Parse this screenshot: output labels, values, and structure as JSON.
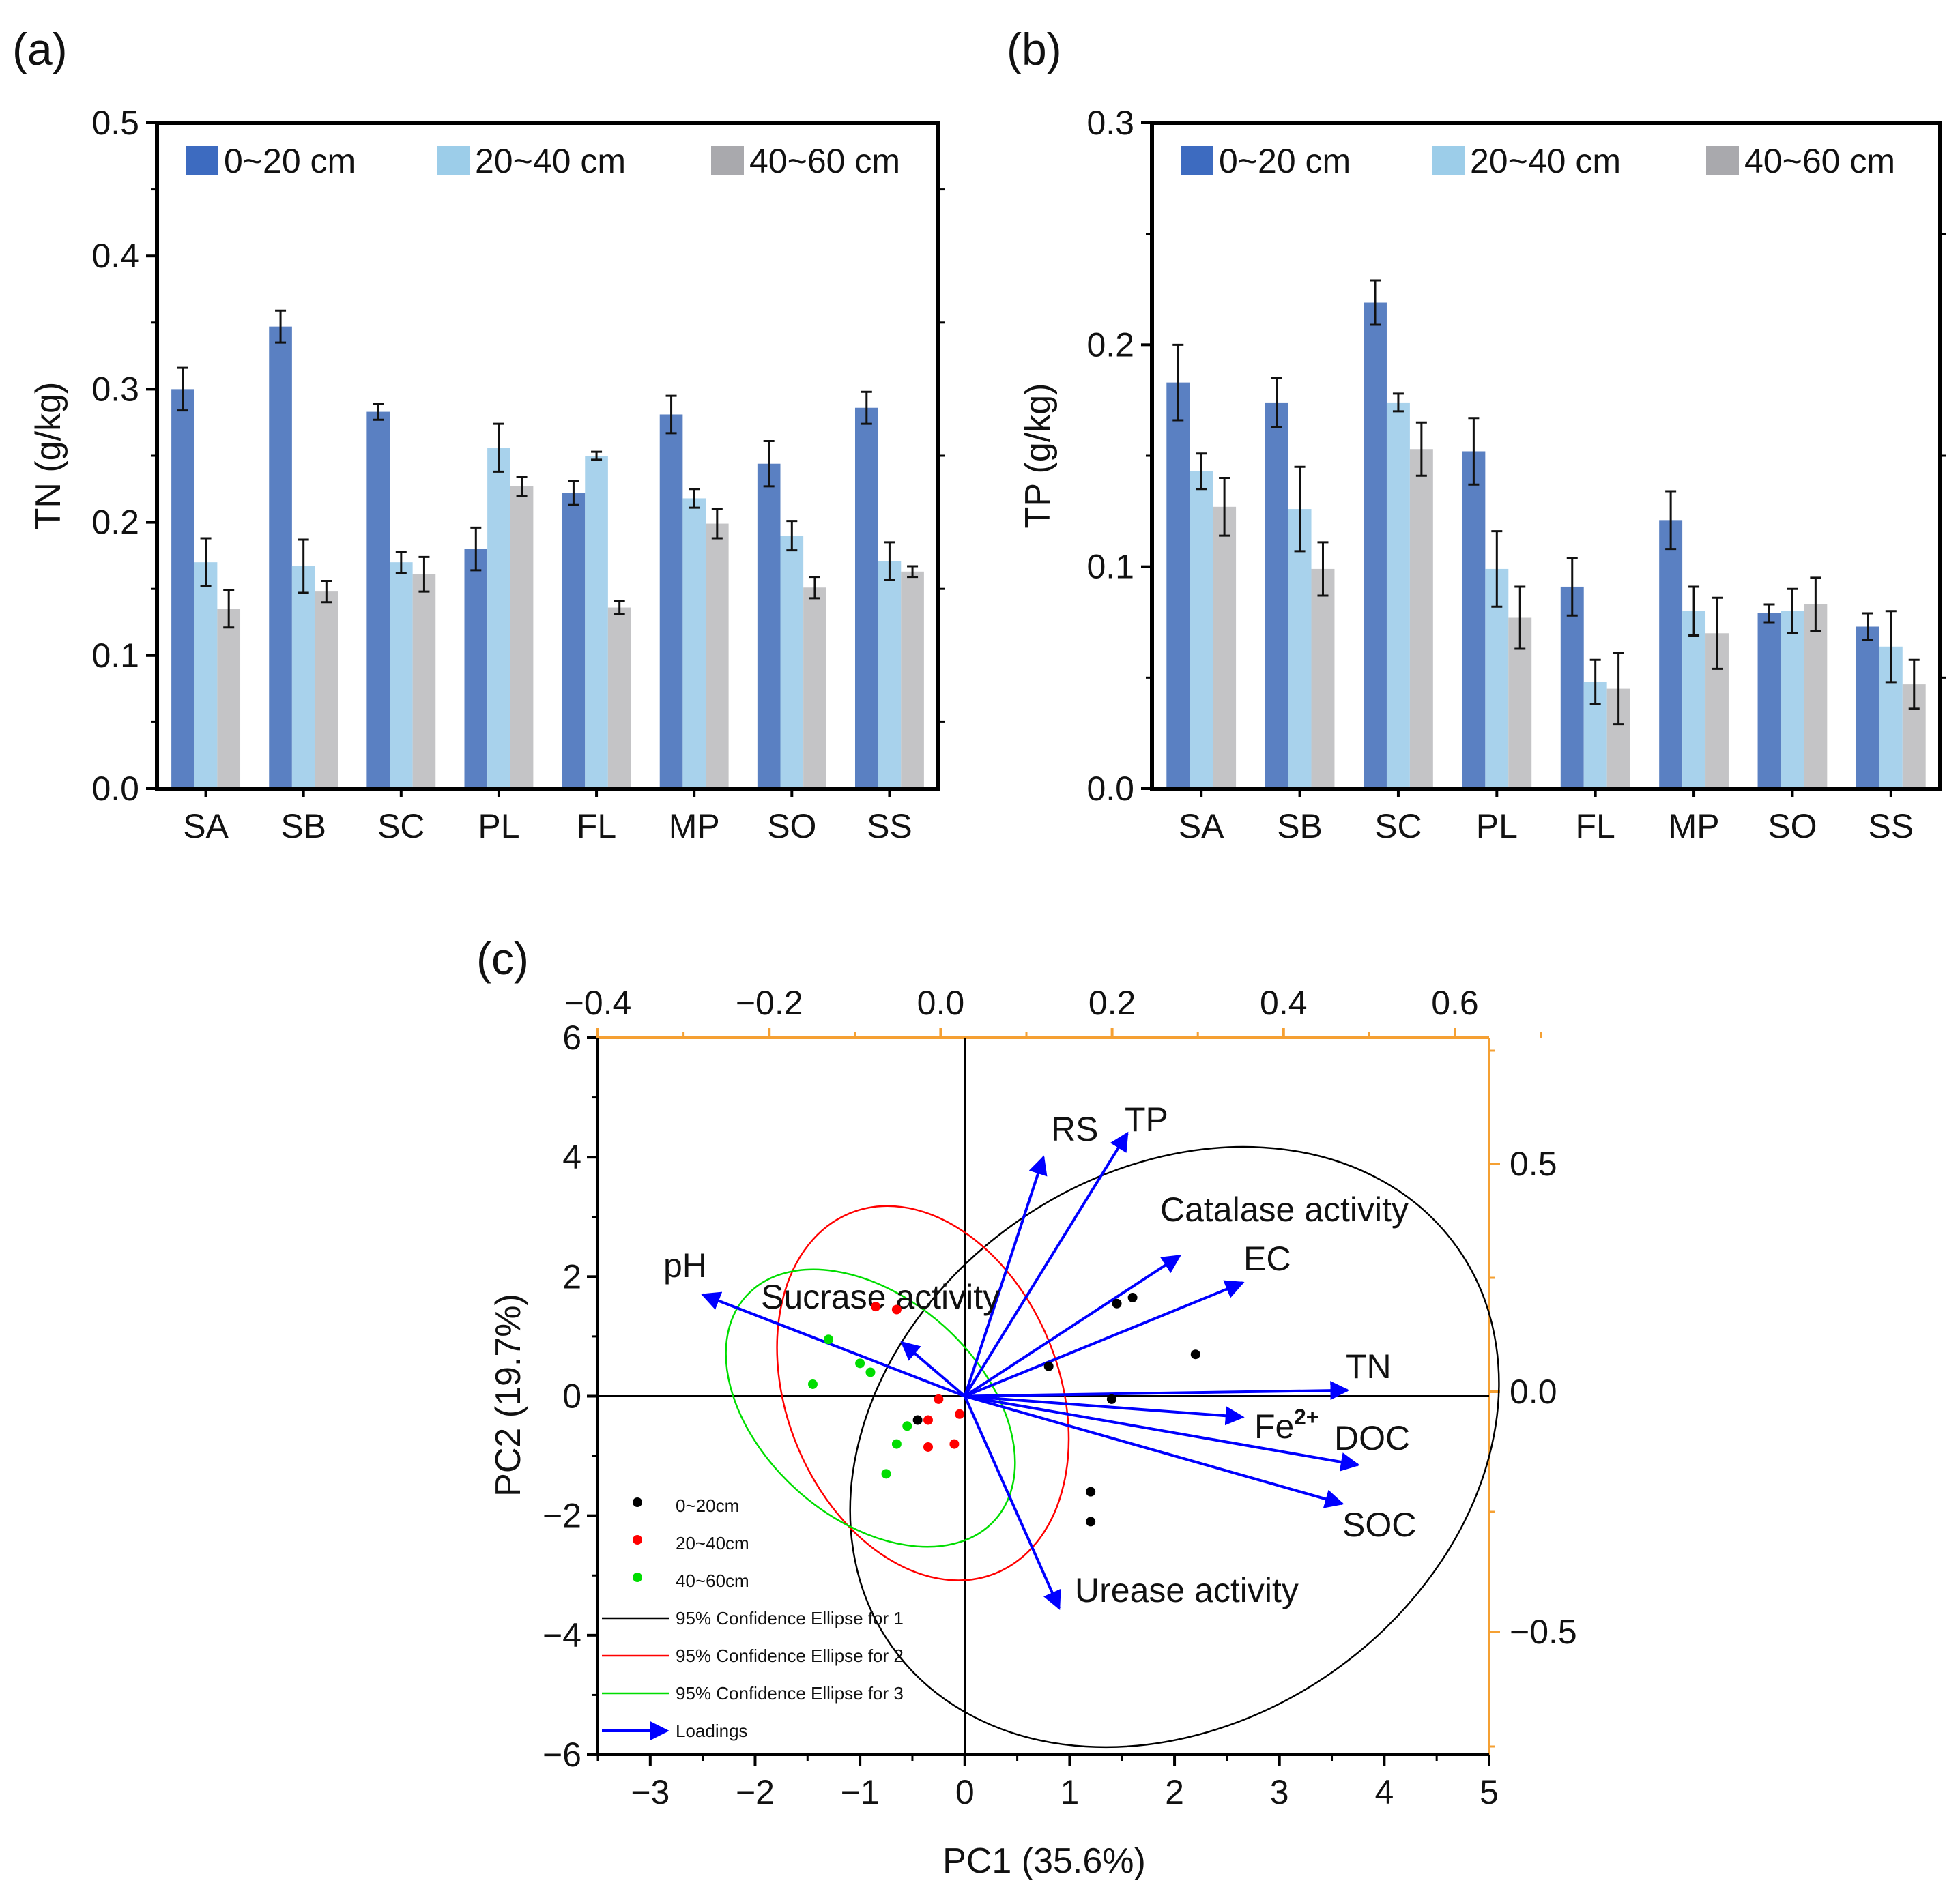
{
  "panels": [
    {
      "label": "(a)",
      "legend": [
        {
          "label": "0~20 cm",
          "color": "#5a80c2"
        },
        {
          "label": "20~40 cm",
          "color": "#a8d2ec"
        },
        {
          "label": "40~60 cm",
          "color": "#c4c4c6"
        }
      ],
      "legend_swatch_colors": [
        "#3d6bc0",
        "#9ccde9",
        "#a9a9ad"
      ]
    },
    {
      "label": "(b)",
      "legend": [
        {
          "label": "0~20 cm",
          "color": "#5a80c2"
        },
        {
          "label": "20~40 cm",
          "color": "#a8d2ec"
        },
        {
          "label": "40~60 cm",
          "color": "#c4c4c6"
        }
      ],
      "legend_swatch_colors": [
        "#3d6bc0",
        "#9ccde9",
        "#a9a9ad"
      ]
    },
    {
      "label": "(c)"
    }
  ],
  "chart_data": [
    {
      "type": "bar",
      "title": "",
      "xlabel": "",
      "ylabel": "TN (g/kg)",
      "ylim": [
        0,
        0.5
      ],
      "yticks": [
        "0.0",
        "0.1",
        "0.2",
        "0.3",
        "0.4",
        "0.5"
      ],
      "categories": [
        "SA",
        "SB",
        "SC",
        "PL",
        "FL",
        "MP",
        "SO",
        "SS"
      ],
      "series": [
        {
          "name": "0~20 cm",
          "values": [
            0.3,
            0.347,
            0.283,
            0.18,
            0.222,
            0.281,
            0.244,
            0.286
          ],
          "errors": [
            0.016,
            0.012,
            0.006,
            0.016,
            0.009,
            0.014,
            0.017,
            0.012
          ]
        },
        {
          "name": "20~40 cm",
          "values": [
            0.17,
            0.167,
            0.17,
            0.256,
            0.25,
            0.218,
            0.19,
            0.171
          ],
          "errors": [
            0.018,
            0.02,
            0.008,
            0.018,
            0.003,
            0.007,
            0.011,
            0.014
          ]
        },
        {
          "name": "40~60 cm",
          "values": [
            0.135,
            0.148,
            0.161,
            0.227,
            0.136,
            0.199,
            0.151,
            0.163
          ],
          "errors": [
            0.014,
            0.008,
            0.013,
            0.007,
            0.005,
            0.011,
            0.008,
            0.004
          ]
        }
      ],
      "legend_position": "top"
    },
    {
      "type": "bar",
      "title": "",
      "xlabel": "",
      "ylabel": "TP (g/kg)",
      "ylim": [
        0,
        0.3
      ],
      "yticks": [
        "0.0",
        "0.1",
        "0.2",
        "0.3"
      ],
      "categories": [
        "SA",
        "SB",
        "SC",
        "PL",
        "FL",
        "MP",
        "SO",
        "SS"
      ],
      "series": [
        {
          "name": "0~20 cm",
          "values": [
            0.183,
            0.174,
            0.219,
            0.152,
            0.091,
            0.121,
            0.079,
            0.073
          ],
          "errors": [
            0.017,
            0.011,
            0.01,
            0.015,
            0.013,
            0.013,
            0.004,
            0.006
          ]
        },
        {
          "name": "20~40 cm",
          "values": [
            0.143,
            0.126,
            0.174,
            0.099,
            0.048,
            0.08,
            0.08,
            0.064
          ],
          "errors": [
            0.008,
            0.019,
            0.004,
            0.017,
            0.01,
            0.011,
            0.01,
            0.016
          ]
        },
        {
          "name": "40~60 cm",
          "values": [
            0.127,
            0.099,
            0.153,
            0.077,
            0.045,
            0.07,
            0.083,
            0.047
          ],
          "errors": [
            0.013,
            0.012,
            0.012,
            0.014,
            0.016,
            0.016,
            0.012,
            0.011
          ]
        }
      ],
      "legend_position": "top"
    },
    {
      "type": "scatter",
      "title": "",
      "xlabel": "PC1 (35.6%)",
      "ylabel": "PC2 (19.7%)",
      "xlim": [
        -3.5,
        5
      ],
      "ylim": [
        -6,
        6
      ],
      "xticks": [
        "−3",
        "−2",
        "−1",
        "0",
        "1",
        "2",
        "3",
        "4",
        "5"
      ],
      "yticks": [
        "−6",
        "−4",
        "−2",
        "0",
        "2",
        "4",
        "6"
      ],
      "top_axis": {
        "range": [
          -0.4,
          0.6
        ],
        "ticks": [
          "−0.4",
          "−0.2",
          "0.0",
          "0.2",
          "0.4",
          "0.6"
        ]
      },
      "right_axis": {
        "ticks": [
          "0.5",
          "0.0",
          "−0.5"
        ],
        "color": "#f5a033"
      },
      "series": [
        {
          "name": "0~20cm",
          "color": "#000000",
          "points": [
            [
              1.45,
              1.55
            ],
            [
              1.6,
              1.65
            ],
            [
              2.2,
              0.7
            ],
            [
              1.4,
              -0.05
            ],
            [
              1.2,
              -1.6
            ],
            [
              1.2,
              -2.1
            ],
            [
              -0.45,
              -0.4
            ],
            [
              0.8,
              0.5
            ]
          ]
        },
        {
          "name": "20~40cm",
          "color": "#ff0000",
          "points": [
            [
              -0.85,
              1.5
            ],
            [
              -0.65,
              1.45
            ],
            [
              -0.25,
              -0.05
            ],
            [
              -0.35,
              -0.4
            ],
            [
              -0.05,
              -0.3
            ],
            [
              -0.35,
              -0.85
            ],
            [
              -0.1,
              -0.8
            ]
          ]
        },
        {
          "name": "40~60cm",
          "color": "#00dd00",
          "points": [
            [
              -1.3,
              0.95
            ],
            [
              -1.45,
              0.2
            ],
            [
              -1.0,
              0.55
            ],
            [
              -0.9,
              0.4
            ],
            [
              -0.55,
              -0.5
            ],
            [
              -0.65,
              -0.8
            ],
            [
              -0.75,
              -1.3
            ]
          ]
        }
      ],
      "ellipses": [
        {
          "name": "95% Confidence Ellipse for 1",
          "color": "#000000",
          "center": [
            2.0,
            -0.85
          ],
          "rx": 3.3,
          "ry": 4.6,
          "rotation": -35
        },
        {
          "name": "95% Confidence Ellipse for 2",
          "color": "#ff0000",
          "center": [
            -0.4,
            0.05
          ],
          "rx": 1.3,
          "ry": 3.25,
          "rotation": -22
        },
        {
          "name": "95% Confidence Ellipse for 3",
          "color": "#00dd00",
          "center": [
            -0.9,
            -0.2
          ],
          "rx": 1.05,
          "ry": 2.8,
          "rotation": -48
        }
      ],
      "loadings": [
        {
          "label": "RS",
          "x": 0.75,
          "y": 4.0
        },
        {
          "label": "TP",
          "x": 1.55,
          "y": 4.4
        },
        {
          "label": "Catalase activity",
          "x": 2.05,
          "y": 2.35
        },
        {
          "label": "EC",
          "x": 2.65,
          "y": 1.9
        },
        {
          "label": "TN",
          "x": 3.65,
          "y": 0.1
        },
        {
          "label": "Fe",
          "superscript": "2+",
          "x": 2.65,
          "y": -0.35
        },
        {
          "label": "DOC",
          "x": 3.75,
          "y": -1.15
        },
        {
          "label": "SOC",
          "x": 3.6,
          "y": -1.8
        },
        {
          "label": "Urease activity",
          "x": 0.9,
          "y": -3.55
        },
        {
          "label": "pH",
          "x": -2.5,
          "y": 1.7
        },
        {
          "label": "Sucrase activity",
          "x": -0.6,
          "y": 0.9
        }
      ],
      "legend": [
        {
          "label": "0~20cm",
          "kind": "dot",
          "color": "#000000"
        },
        {
          "label": "20~40cm",
          "kind": "dot",
          "color": "#ff0000"
        },
        {
          "label": "40~60cm",
          "kind": "dot",
          "color": "#00dd00"
        },
        {
          "label": "95% Confidence Ellipse for 1",
          "kind": "line",
          "color": "#000000"
        },
        {
          "label": "95% Confidence Ellipse for 2",
          "kind": "line",
          "color": "#ff0000"
        },
        {
          "label": "95% Confidence Ellipse for 3",
          "kind": "line",
          "color": "#00dd00"
        },
        {
          "label": "Loadings",
          "kind": "arrow",
          "color": "#0000ff"
        }
      ],
      "loading_color": "#0000ff"
    }
  ]
}
